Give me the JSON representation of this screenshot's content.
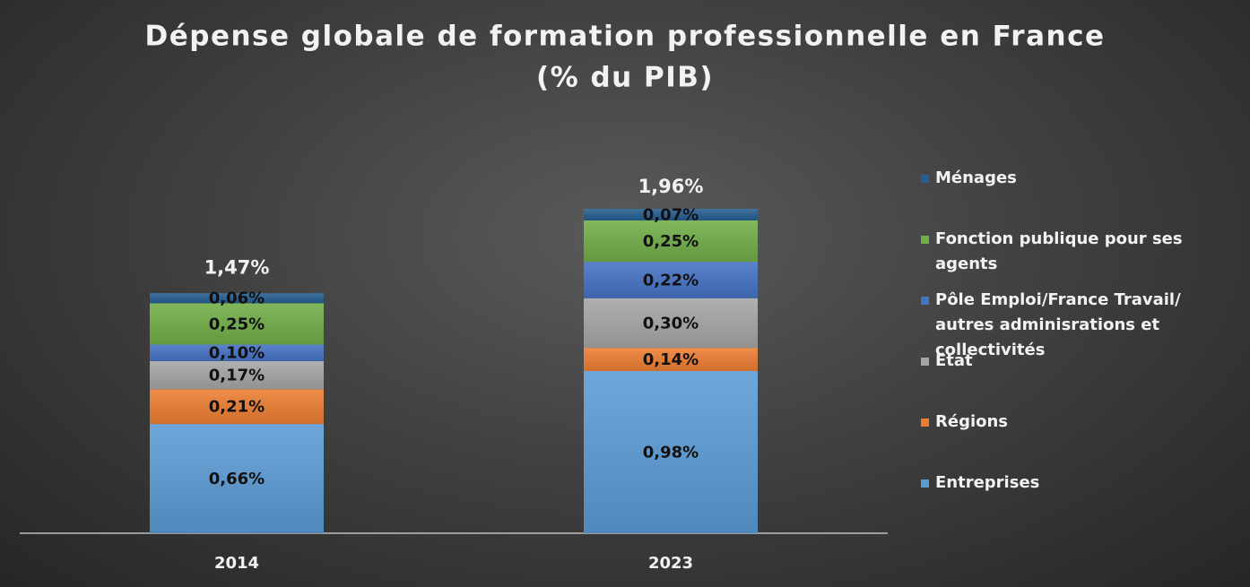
{
  "chart_data": {
    "type": "stacked_bar",
    "title": [
      "Dépense globale de formation professionnelle en France",
      "(% du PIB)"
    ],
    "categories": [
      "2014",
      "2023"
    ],
    "series": [
      {
        "name": "Entreprises",
        "color": "#5b9bd5",
        "values": [
          0.66,
          0.98
        ],
        "value_labels": [
          "0,66%",
          "0,98%"
        ]
      },
      {
        "name": "Régions",
        "color": "#ed7d31",
        "values": [
          0.21,
          0.14
        ],
        "value_labels": [
          "0,21%",
          "0,14%"
        ]
      },
      {
        "name": "Etat",
        "color": "#a5a5a5",
        "values": [
          0.17,
          0.3
        ],
        "value_labels": [
          "0,17%",
          "0,30%"
        ]
      },
      {
        "name": "Pôle Emploi/France Travail/ autres adminisrations et collectivités",
        "color": "#4472c4",
        "values": [
          0.1,
          0.22
        ],
        "value_labels": [
          "0,10%",
          "0,22%"
        ]
      },
      {
        "name": "Fonction publique pour ses agents",
        "color": "#70ad47",
        "values": [
          0.25,
          0.25
        ],
        "value_labels": [
          "0,25%",
          "0,25%"
        ]
      },
      {
        "name": "Ménages",
        "color": "#255e91",
        "values": [
          0.06,
          0.07
        ],
        "value_labels": [
          "0,06%",
          "0,07%"
        ]
      }
    ],
    "totals": [
      1.47,
      1.96
    ],
    "total_labels": [
      "1,47%",
      "1,96%"
    ],
    "legend": "right"
  }
}
